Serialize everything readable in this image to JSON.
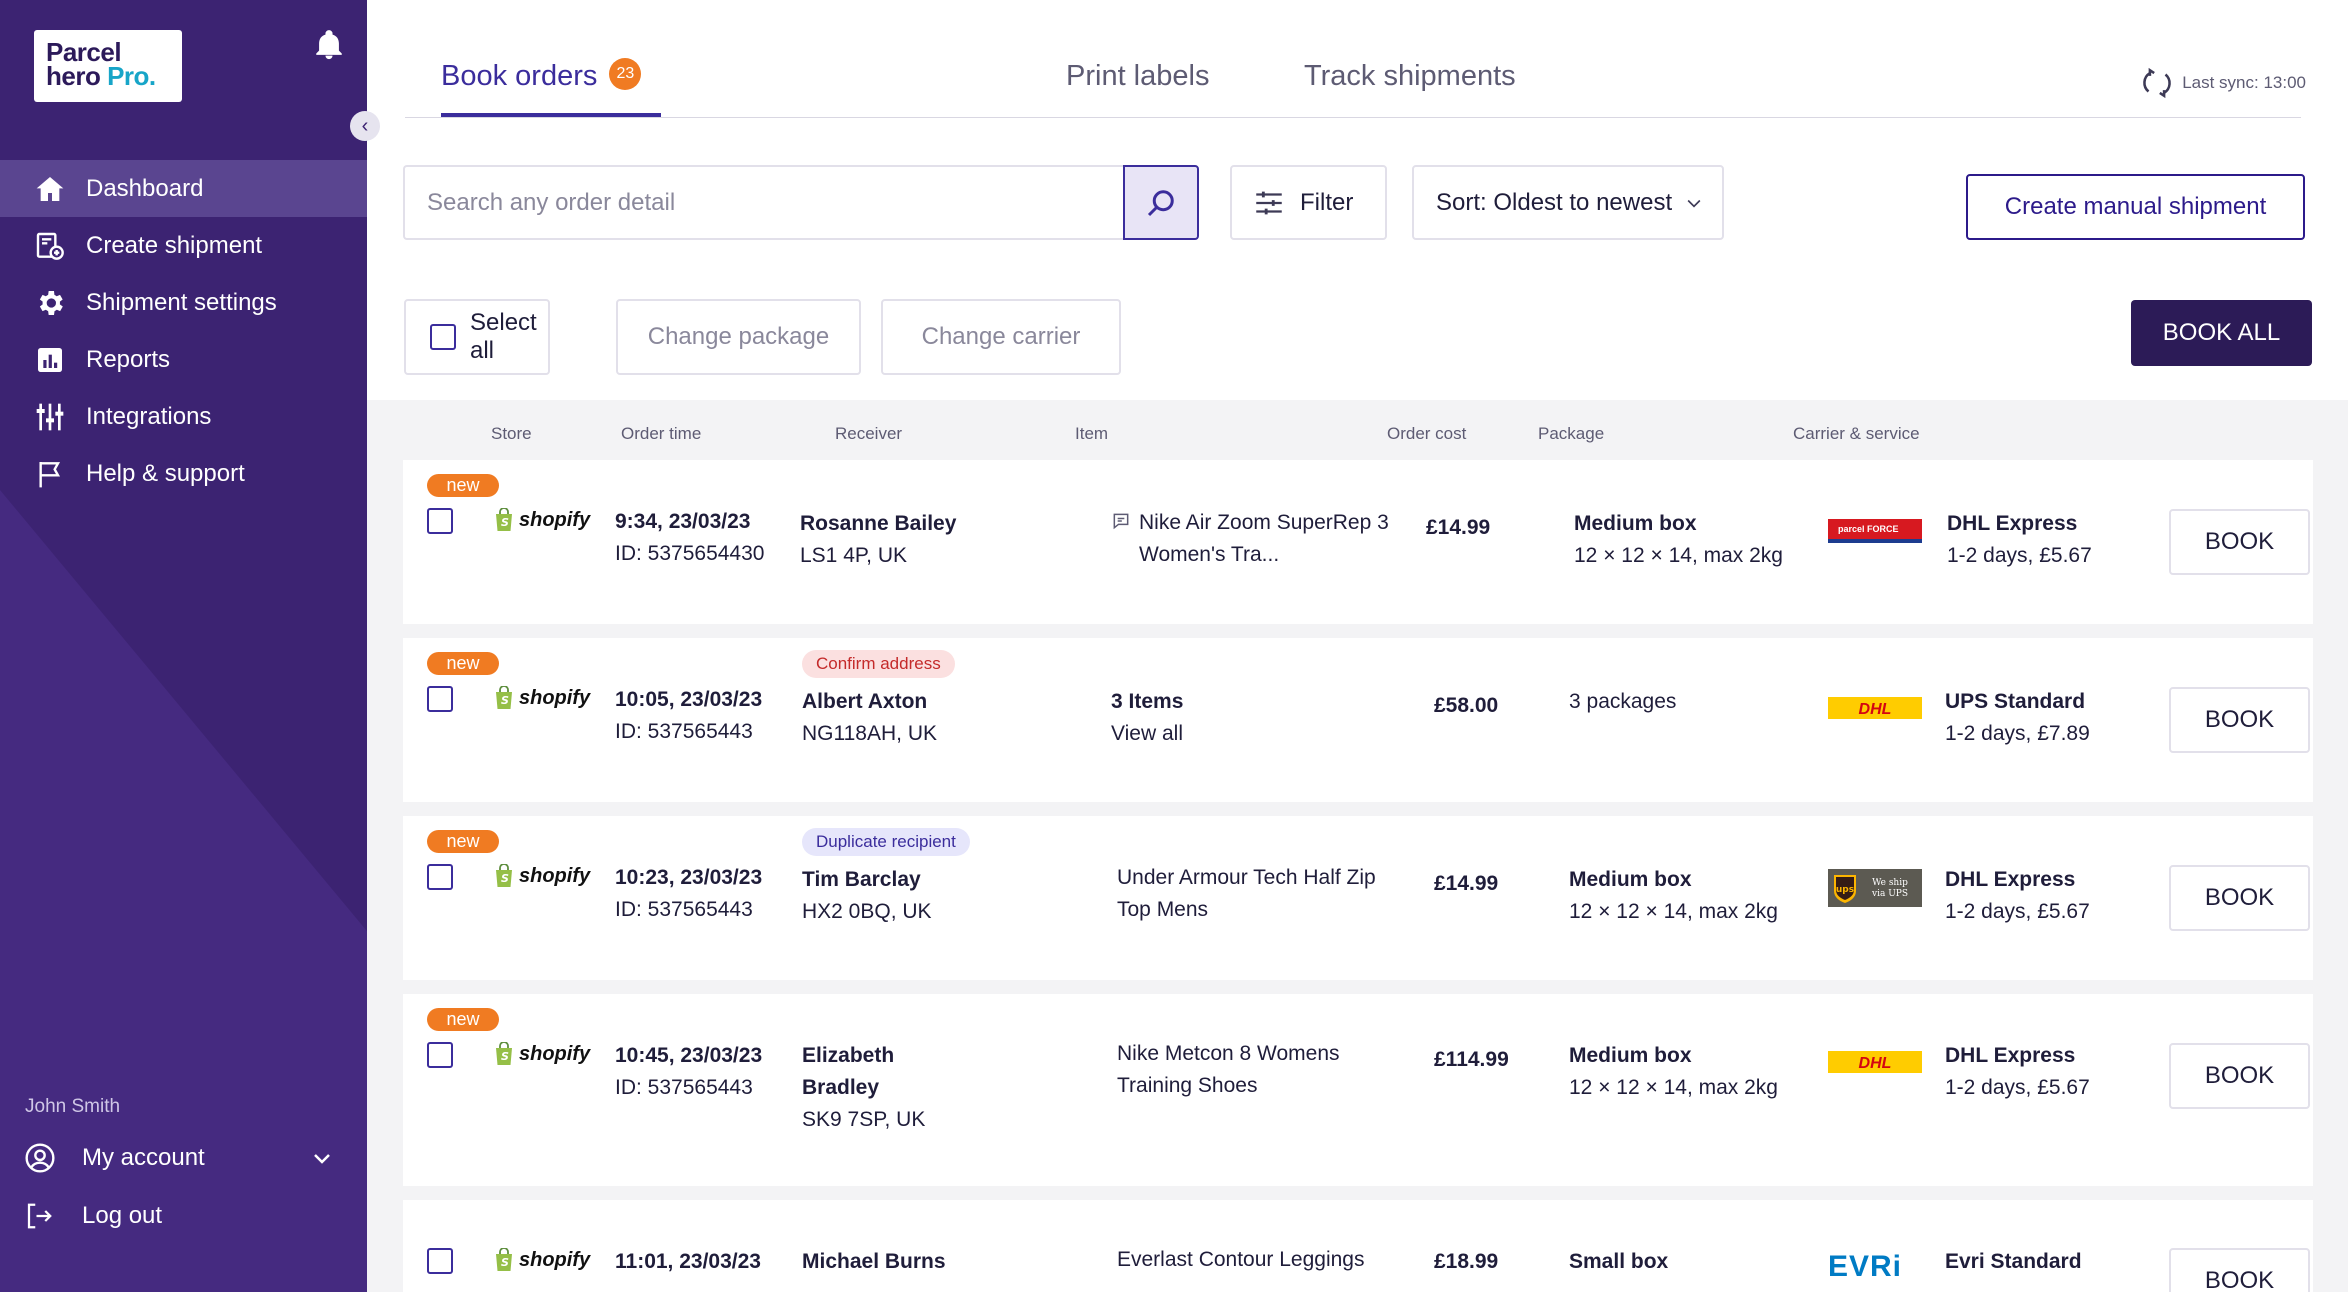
{
  "brand": {
    "line1": "Parcel",
    "line2a": "hero",
    "line2b": "Pro."
  },
  "sidebar": {
    "items": [
      {
        "label": "Dashboard",
        "icon": "home-icon"
      },
      {
        "label": "Create shipment",
        "icon": "create-shipment-icon"
      },
      {
        "label": "Shipment settings",
        "icon": "gear-icon"
      },
      {
        "label": "Reports",
        "icon": "reports-icon"
      },
      {
        "label": "Integrations",
        "icon": "integrations-icon"
      },
      {
        "label": "Help & support",
        "icon": "flag-icon"
      }
    ],
    "user_name": "John Smith",
    "account_label": "My account",
    "logout_label": "Log out"
  },
  "tabs": {
    "book": "Book orders",
    "book_count": "23",
    "print": "Print labels",
    "track": "Track shipments"
  },
  "sync": "Last sync: 13:00",
  "toolbar": {
    "search_placeholder": "Search any order detail",
    "filter": "Filter",
    "sort": "Sort: Oldest to newest",
    "create_manual": "Create manual shipment",
    "select_all": "Select all",
    "change_package": "Change package",
    "change_carrier": "Change carrier",
    "book_all": "BOOK ALL"
  },
  "columns": [
    "Store",
    "Order time",
    "Receiver",
    "Item",
    "Order cost",
    "Package",
    "Carrier & service"
  ],
  "orders": [
    {
      "badge": "new",
      "store": "shopify",
      "time": "9:34, 23/03/23",
      "id": "ID: 5375654430",
      "receiver1": "Rosanne Bailey",
      "receiver2": "",
      "receiver_addr": "LS1 4P, UK",
      "tag": "",
      "item1": "Nike Air Zoom SuperRep 3",
      "item2": "Women's Tra...",
      "cost": "£14.99",
      "package1": "Medium box",
      "package2": "12 × 12 × 14, max 2kg",
      "carrier_logo": "parcelforce",
      "carrier": "DHL Express",
      "service": "1-2 days, £5.67",
      "book": "BOOK"
    },
    {
      "badge": "new",
      "store": "shopify",
      "time": "10:05, 23/03/23",
      "id": "ID: 537565443",
      "receiver1": "Albert Axton",
      "receiver2": "",
      "receiver_addr": "NG118AH, UK",
      "tag": "Confirm address",
      "item1": "3 Items",
      "item2": "View all",
      "cost": "£58.00",
      "package1": "3 packages",
      "package2": "",
      "carrier_logo": "DHL",
      "carrier": "UPS Standard",
      "service": "1-2 days, £7.89",
      "book": "BOOK"
    },
    {
      "badge": "new",
      "store": "shopify",
      "time": "10:23, 23/03/23",
      "id": "ID: 537565443",
      "receiver1": "Tim Barclay",
      "receiver2": "",
      "receiver_addr": "HX2 0BQ, UK",
      "tag": "Duplicate recipient",
      "item1": "Under Armour Tech Half Zip",
      "item2": "Top Mens",
      "cost": "£14.99",
      "package1": "Medium box",
      "package2": "12 × 12 × 14, max 2kg",
      "carrier_logo": "ups",
      "carrier": "DHL Express",
      "service": "1-2 days, £5.67",
      "book": "BOOK"
    },
    {
      "badge": "new",
      "store": "shopify",
      "time": "10:45, 23/03/23",
      "id": "ID: 537565443",
      "receiver1": "Elizabeth",
      "receiver2": "Bradley",
      "receiver_addr": "SK9 7SP, UK",
      "tag": "",
      "item1": "Nike Metcon 8 Womens",
      "item2": "Training Shoes",
      "cost": "£114.99",
      "package1": "Medium box",
      "package2": "12 × 12 × 14, max 2kg",
      "carrier_logo": "DHL",
      "carrier": "DHL Express",
      "service": "1-2 days, £5.67",
      "book": "BOOK"
    },
    {
      "badge": "",
      "store": "shopify",
      "time": "11:01, 23/03/23",
      "id": "",
      "receiver1": "Michael Burns",
      "receiver2": "",
      "receiver_addr": "",
      "tag": "",
      "item1": "Everlast Contour Leggings",
      "item2": "",
      "cost": "£18.99",
      "package1": "Small box",
      "package2": "",
      "carrier_logo": "EVRi",
      "carrier": "Evri Standard",
      "service": "",
      "book": "BOOK"
    }
  ],
  "colors": {
    "sidebar": "#3c2372",
    "accent": "#3b2d9c",
    "badge": "#f07b22",
    "book_all": "#2c1b57"
  }
}
